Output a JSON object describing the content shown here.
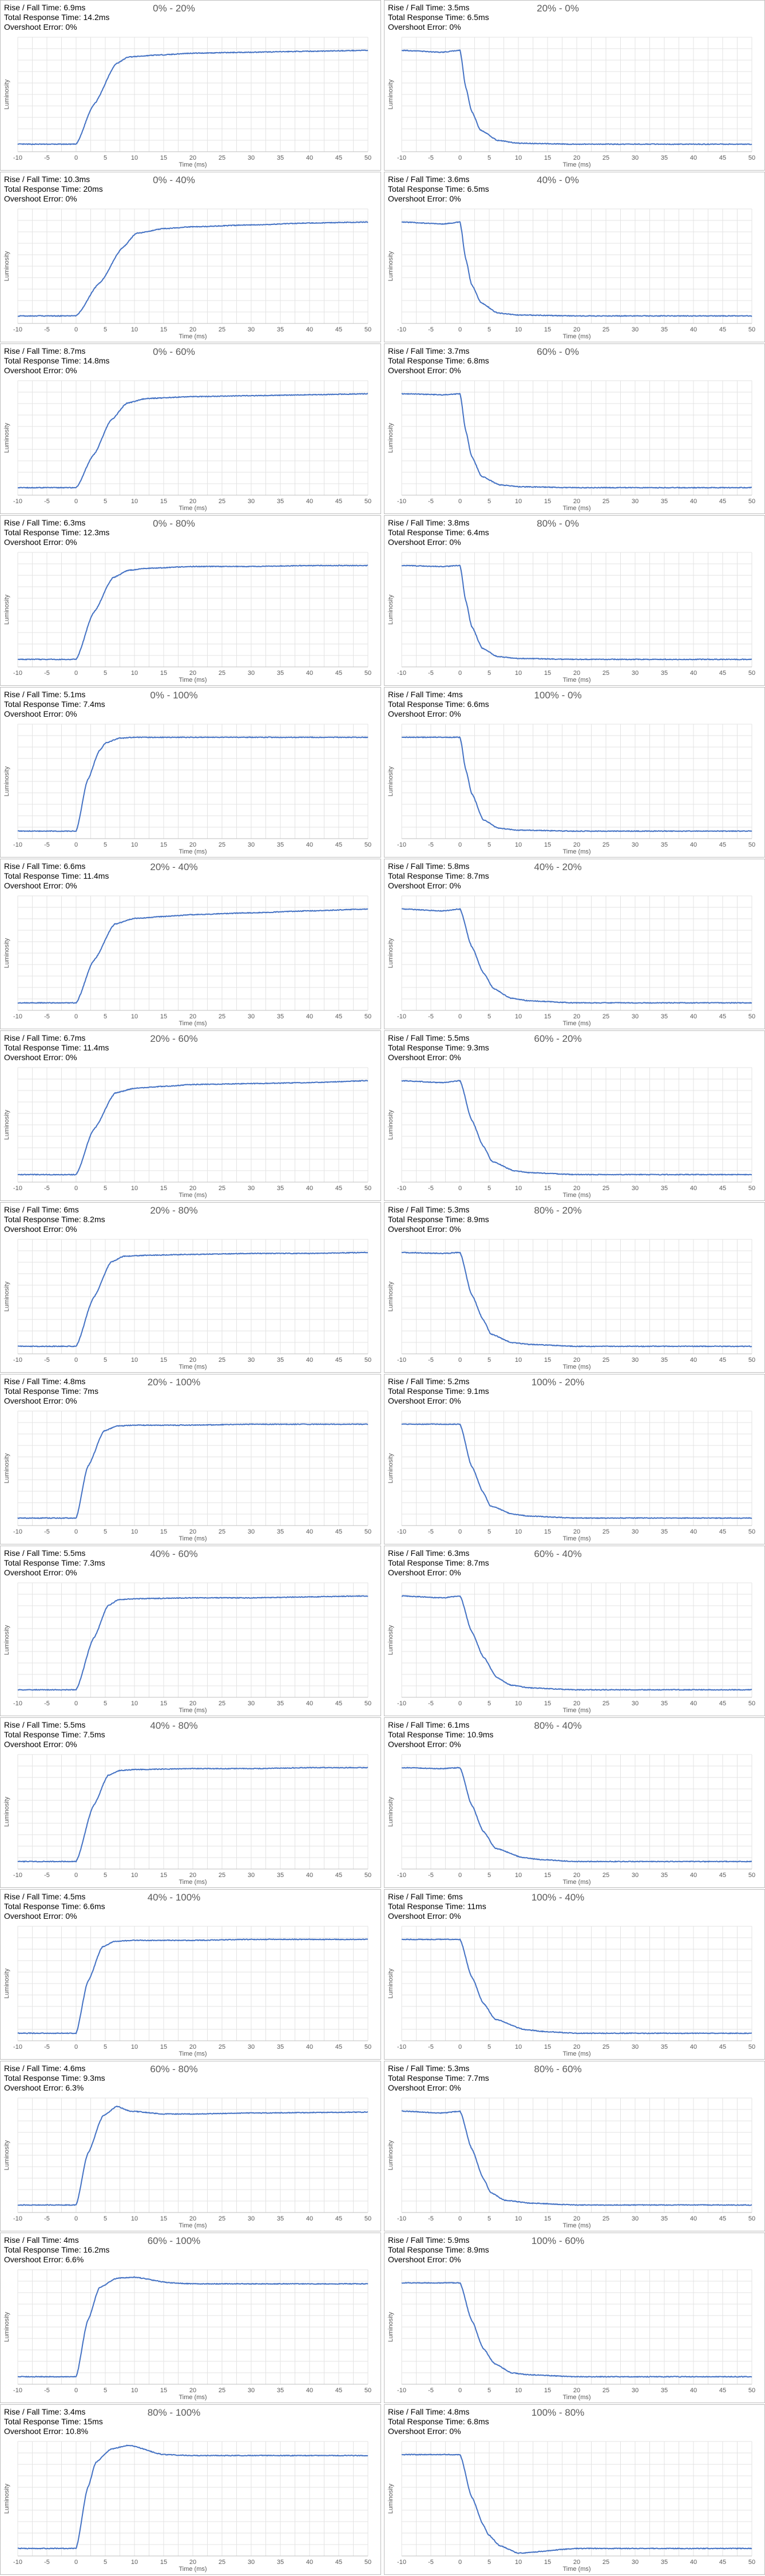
{
  "axis": {
    "xlabel": "Time (ms)",
    "ylabel": "Luminosity",
    "xlim": [
      -10,
      50
    ],
    "xticks": [
      "-10",
      "-5",
      "0",
      "5",
      "10",
      "15",
      "20",
      "25",
      "30",
      "35",
      "40",
      "45",
      "50"
    ],
    "grid": true
  },
  "style": {
    "line_color": "#4472C4",
    "grid_color": "#e3e3e3",
    "tick_color": "#595959",
    "border_color": "#bdbdbd"
  },
  "chart_data": [
    {
      "type": "line",
      "title": "0% - 20%",
      "stats": {
        "rise_fall": "Rise / Fall Time: 6.9ms",
        "total": "Total Response Time: 14.2ms",
        "overshoot": "Overshoot Error: 0%"
      },
      "x": [
        -10,
        0,
        3,
        6.9,
        9,
        14,
        20,
        30,
        40,
        50
      ],
      "y": [
        0,
        0,
        0.42,
        0.86,
        0.93,
        0.95,
        0.97,
        0.98,
        0.99,
        1
      ]
    },
    {
      "type": "line",
      "title": "20% - 0%",
      "stats": {
        "rise_fall": "Rise / Fall Time: 3.5ms",
        "total": "Total Response Time: 6.5ms",
        "overshoot": "Overshoot Error: 0%"
      },
      "x": [
        -10,
        -3,
        0,
        1,
        2,
        3.5,
        6.5,
        10,
        20,
        50
      ],
      "y": [
        1,
        0.98,
        1,
        0.6,
        0.35,
        0.15,
        0.04,
        0.01,
        0,
        0
      ]
    },
    {
      "type": "line",
      "title": "0% - 40%",
      "stats": {
        "rise_fall": "Rise / Fall Time: 10.3ms",
        "total": "Total Response Time: 20ms",
        "overshoot": "Overshoot Error: 0%"
      },
      "x": [
        -10,
        0,
        4,
        8,
        10.3,
        15,
        20,
        30,
        40,
        50
      ],
      "y": [
        0,
        0,
        0.35,
        0.73,
        0.88,
        0.93,
        0.95,
        0.97,
        0.99,
        1
      ]
    },
    {
      "type": "line",
      "title": "40% - 0%",
      "stats": {
        "rise_fall": "Rise / Fall Time: 3.6ms",
        "total": "Total Response Time: 6.5ms",
        "overshoot": "Overshoot Error: 0%"
      },
      "x": [
        -10,
        -3,
        0,
        1,
        2,
        3.6,
        6.5,
        10,
        20,
        50
      ],
      "y": [
        1,
        0.98,
        1,
        0.6,
        0.33,
        0.14,
        0.03,
        0.01,
        0,
        0
      ]
    },
    {
      "type": "line",
      "title": "0% - 60%",
      "stats": {
        "rise_fall": "Rise / Fall Time: 8.7ms",
        "total": "Total Response Time: 14.8ms",
        "overshoot": "Overshoot Error: 0%"
      },
      "x": [
        -10,
        0,
        3,
        6,
        8.7,
        12,
        20,
        30,
        40,
        50
      ],
      "y": [
        0,
        0,
        0.35,
        0.72,
        0.9,
        0.95,
        0.97,
        0.98,
        0.99,
        1
      ]
    },
    {
      "type": "line",
      "title": "60% - 0%",
      "stats": {
        "rise_fall": "Rise / Fall Time: 3.7ms",
        "total": "Total Response Time: 6.8ms",
        "overshoot": "Overshoot Error: 0%"
      },
      "x": [
        -10,
        -3,
        0,
        1,
        2,
        3.7,
        6.8,
        10,
        20,
        50
      ],
      "y": [
        1,
        0.99,
        1,
        0.6,
        0.33,
        0.12,
        0.03,
        0.01,
        0,
        0
      ]
    },
    {
      "type": "line",
      "title": "0% - 80%",
      "stats": {
        "rise_fall": "Rise / Fall Time: 6.3ms",
        "total": "Total Response Time: 12.3ms",
        "overshoot": "Overshoot Error: 0%"
      },
      "x": [
        -10,
        0,
        3,
        6.3,
        9,
        12,
        20,
        30,
        40,
        50
      ],
      "y": [
        0,
        0,
        0.5,
        0.87,
        0.95,
        0.97,
        0.99,
        0.99,
        1,
        1
      ]
    },
    {
      "type": "line",
      "title": "80% - 0%",
      "stats": {
        "rise_fall": "Rise / Fall Time: 3.8ms",
        "total": "Total Response Time: 6.4ms",
        "overshoot": "Overshoot Error: 0%"
      },
      "x": [
        -10,
        -3,
        0,
        1,
        2,
        3.8,
        6.4,
        10,
        20,
        50
      ],
      "y": [
        1,
        0.99,
        1,
        0.62,
        0.35,
        0.12,
        0.03,
        0.01,
        0,
        0
      ]
    },
    {
      "type": "line",
      "title": "0% - 100%",
      "stats": {
        "rise_fall": "Rise / Fall Time: 5.1ms",
        "total": "Total Response Time: 7.4ms",
        "overshoot": "Overshoot Error: 0%"
      },
      "x": [
        -10,
        0,
        2,
        4,
        5.1,
        7.4,
        10,
        20,
        30,
        50
      ],
      "y": [
        0,
        0,
        0.55,
        0.86,
        0.94,
        0.99,
        1,
        1,
        1,
        1
      ]
    },
    {
      "type": "line",
      "title": "100% - 0%",
      "stats": {
        "rise_fall": "Rise / Fall Time: 4ms",
        "total": "Total Response Time: 6.6ms",
        "overshoot": "Overshoot Error: 0%"
      },
      "x": [
        -10,
        -3,
        0,
        1,
        2,
        4,
        6.6,
        10,
        20,
        50
      ],
      "y": [
        1,
        1,
        1,
        0.65,
        0.4,
        0.12,
        0.03,
        0.01,
        0,
        0
      ]
    },
    {
      "type": "line",
      "title": "20% - 40%",
      "stats": {
        "rise_fall": "Rise / Fall Time: 6.6ms",
        "total": "Total Response Time: 11.4ms",
        "overshoot": "Overshoot Error: 0%"
      },
      "x": [
        -10,
        0,
        3,
        6.6,
        10,
        15,
        20,
        30,
        40,
        50
      ],
      "y": [
        0,
        0,
        0.45,
        0.84,
        0.9,
        0.92,
        0.94,
        0.96,
        0.98,
        1
      ]
    },
    {
      "type": "line",
      "title": "40% - 20%",
      "stats": {
        "rise_fall": "Rise / Fall Time: 5.8ms",
        "total": "Total Response Time: 8.7ms",
        "overshoot": "Overshoot Error: 0%"
      },
      "x": [
        -10,
        -3,
        0,
        2,
        4,
        5.8,
        8.7,
        12,
        20,
        50
      ],
      "y": [
        1,
        0.98,
        1,
        0.6,
        0.32,
        0.15,
        0.05,
        0.02,
        0,
        0
      ]
    },
    {
      "type": "line",
      "title": "20% - 60%",
      "stats": {
        "rise_fall": "Rise / Fall Time: 6.7ms",
        "total": "Total Response Time: 11.4ms",
        "overshoot": "Overshoot Error: 0%"
      },
      "x": [
        -10,
        0,
        3,
        6.7,
        10,
        15,
        20,
        30,
        40,
        50
      ],
      "y": [
        0,
        0,
        0.48,
        0.87,
        0.92,
        0.94,
        0.96,
        0.97,
        0.98,
        1
      ]
    },
    {
      "type": "line",
      "title": "60% - 20%",
      "stats": {
        "rise_fall": "Rise / Fall Time: 5.5ms",
        "total": "Total Response Time: 9.3ms",
        "overshoot": "Overshoot Error: 0%"
      },
      "x": [
        -10,
        -3,
        0,
        2,
        4,
        5.5,
        9.3,
        12,
        20,
        50
      ],
      "y": [
        1,
        0.98,
        1,
        0.58,
        0.3,
        0.14,
        0.04,
        0.02,
        0,
        0
      ]
    },
    {
      "type": "line",
      "title": "20% - 80%",
      "stats": {
        "rise_fall": "Rise / Fall Time: 6ms",
        "total": "Total Response Time: 8.2ms",
        "overshoot": "Overshoot Error: 0%"
      },
      "x": [
        -10,
        0,
        3,
        6,
        8.2,
        12,
        20,
        30,
        40,
        50
      ],
      "y": [
        0,
        0,
        0.52,
        0.9,
        0.96,
        0.97,
        0.98,
        0.99,
        0.99,
        1
      ]
    },
    {
      "type": "line",
      "title": "80% - 20%",
      "stats": {
        "rise_fall": "Rise / Fall Time: 5.3ms",
        "total": "Total Response Time: 8.9ms",
        "overshoot": "Overshoot Error: 0%"
      },
      "x": [
        -10,
        -3,
        0,
        2,
        4,
        5.3,
        8.9,
        12,
        20,
        50
      ],
      "y": [
        1,
        0.99,
        1,
        0.55,
        0.28,
        0.13,
        0.04,
        0.02,
        0,
        0
      ]
    },
    {
      "type": "line",
      "title": "20% - 100%",
      "stats": {
        "rise_fall": "Rise / Fall Time: 4.8ms",
        "total": "Total Response Time: 7ms",
        "overshoot": "Overshoot Error: 0%"
      },
      "x": [
        -10,
        0,
        2,
        4.8,
        7,
        10,
        20,
        30,
        40,
        50
      ],
      "y": [
        0,
        0,
        0.55,
        0.93,
        0.98,
        0.99,
        0.99,
        1,
        1,
        1
      ]
    },
    {
      "type": "line",
      "title": "100% - 20%",
      "stats": {
        "rise_fall": "Rise / Fall Time: 5.2ms",
        "total": "Total Response Time: 9.1ms",
        "overshoot": "Overshoot Error: 0%"
      },
      "x": [
        -10,
        -3,
        0,
        2,
        4,
        5.2,
        9.1,
        12,
        20,
        50
      ],
      "y": [
        1,
        1,
        1,
        0.55,
        0.27,
        0.13,
        0.04,
        0.02,
        0,
        0
      ]
    },
    {
      "type": "line",
      "title": "40% - 60%",
      "stats": {
        "rise_fall": "Rise / Fall Time: 5.5ms",
        "total": "Total Response Time: 7.3ms",
        "overshoot": "Overshoot Error: 0%"
      },
      "x": [
        -10,
        0,
        3,
        5.5,
        7.3,
        10,
        20,
        30,
        40,
        50
      ],
      "y": [
        0,
        0,
        0.55,
        0.9,
        0.96,
        0.97,
        0.98,
        0.98,
        0.99,
        1
      ]
    },
    {
      "type": "line",
      "title": "60% - 40%",
      "stats": {
        "rise_fall": "Rise / Fall Time: 6.3ms",
        "total": "Total Response Time: 8.7ms",
        "overshoot": "Overshoot Error: 0%"
      },
      "x": [
        -10,
        -3,
        0,
        2,
        4,
        6.3,
        8.7,
        12,
        20,
        50
      ],
      "y": [
        1,
        0.98,
        1,
        0.62,
        0.35,
        0.13,
        0.05,
        0.02,
        0,
        0
      ]
    },
    {
      "type": "line",
      "title": "40% - 80%",
      "stats": {
        "rise_fall": "Rise / Fall Time: 5.5ms",
        "total": "Total Response Time: 7.5ms",
        "overshoot": "Overshoot Error: 0%"
      },
      "x": [
        -10,
        0,
        3,
        5.5,
        7.5,
        10,
        20,
        30,
        40,
        50
      ],
      "y": [
        0,
        0,
        0.6,
        0.92,
        0.97,
        0.98,
        0.99,
        0.99,
        1,
        1
      ]
    },
    {
      "type": "line",
      "title": "80% - 40%",
      "stats": {
        "rise_fall": "Rise / Fall Time: 6.1ms",
        "total": "Total Response Time: 10.9ms",
        "overshoot": "Overshoot Error: 0%"
      },
      "x": [
        -10,
        -3,
        0,
        2,
        4,
        6.1,
        10.9,
        14,
        20,
        50
      ],
      "y": [
        1,
        0.99,
        1,
        0.6,
        0.32,
        0.14,
        0.04,
        0.02,
        0,
        0
      ]
    },
    {
      "type": "line",
      "title": "40% - 100%",
      "stats": {
        "rise_fall": "Rise / Fall Time: 4.5ms",
        "total": "Total Response Time: 6.6ms",
        "overshoot": "Overshoot Error: 0%"
      },
      "x": [
        -10,
        0,
        2,
        4.5,
        6.6,
        10,
        20,
        30,
        40,
        50
      ],
      "y": [
        0,
        0,
        0.55,
        0.92,
        0.98,
        0.99,
        0.99,
        1,
        1,
        1
      ]
    },
    {
      "type": "line",
      "title": "100% - 40%",
      "stats": {
        "rise_fall": "Rise / Fall Time: 6ms",
        "total": "Total Response Time: 11ms",
        "overshoot": "Overshoot Error: 0%"
      },
      "x": [
        -10,
        -3,
        0,
        2,
        4,
        6,
        11,
        14,
        20,
        50
      ],
      "y": [
        1,
        1,
        1,
        0.6,
        0.32,
        0.15,
        0.04,
        0.02,
        0,
        0
      ]
    },
    {
      "type": "line",
      "title": "60% - 80%",
      "stats": {
        "rise_fall": "Rise / Fall Time: 4.6ms",
        "total": "Total Response Time: 9.3ms",
        "overshoot": "Overshoot Error: 6.3%"
      },
      "x": [
        -10,
        0,
        2,
        4.6,
        7,
        9.3,
        15,
        20,
        30,
        50
      ],
      "y": [
        0,
        0,
        0.55,
        0.95,
        1.05,
        1.0,
        0.97,
        0.97,
        0.98,
        0.99
      ]
    },
    {
      "type": "line",
      "title": "80% - 60%",
      "stats": {
        "rise_fall": "Rise / Fall Time: 5.3ms",
        "total": "Total Response Time: 7.7ms",
        "overshoot": "Overshoot Error: 0%"
      },
      "x": [
        -10,
        -3,
        0,
        2,
        4,
        5.3,
        7.7,
        12,
        20,
        50
      ],
      "y": [
        1,
        0.98,
        1,
        0.6,
        0.28,
        0.13,
        0.05,
        0.02,
        0,
        0
      ]
    },
    {
      "type": "line",
      "title": "60% - 100%",
      "stats": {
        "rise_fall": "Rise / Fall Time: 4ms",
        "total": "Total Response Time: 16.2ms",
        "overshoot": "Overshoot Error: 6.6%"
      },
      "x": [
        -10,
        0,
        2,
        4,
        7,
        10,
        16.2,
        20,
        30,
        50
      ],
      "y": [
        0,
        0,
        0.6,
        0.95,
        1.05,
        1.06,
        1.0,
        0.99,
        0.99,
        0.99
      ]
    },
    {
      "type": "line",
      "title": "100% - 60%",
      "stats": {
        "rise_fall": "Rise / Fall Time: 5.9ms",
        "total": "Total Response Time: 8.9ms",
        "overshoot": "Overshoot Error: 0%"
      },
      "x": [
        -10,
        -3,
        0,
        2,
        4,
        5.9,
        8.9,
        12,
        20,
        50
      ],
      "y": [
        1,
        1,
        1,
        0.6,
        0.3,
        0.14,
        0.04,
        0.02,
        0,
        0
      ]
    },
    {
      "type": "line",
      "title": "80% - 100%",
      "stats": {
        "rise_fall": "Rise / Fall Time: 3.4ms",
        "total": "Total Response Time: 15ms",
        "overshoot": "Overshoot Error: 10.8%"
      },
      "x": [
        -10,
        0,
        2,
        3.4,
        6,
        9,
        15,
        20,
        30,
        50
      ],
      "y": [
        0,
        0,
        0.65,
        0.92,
        1.06,
        1.1,
        1.0,
        0.99,
        0.99,
        0.99
      ]
    },
    {
      "type": "line",
      "title": "100% - 80%",
      "stats": {
        "rise_fall": "Rise / Fall Time: 4.8ms",
        "total": "Total Response Time: 6.8ms",
        "overshoot": "Overshoot Error: 0%"
      },
      "x": [
        -10,
        -3,
        0,
        2,
        4,
        4.8,
        6.8,
        10,
        20,
        50
      ],
      "y": [
        1,
        1,
        1,
        0.55,
        0.25,
        0.15,
        0.03,
        -0.05,
        0,
        0
      ]
    }
  ]
}
